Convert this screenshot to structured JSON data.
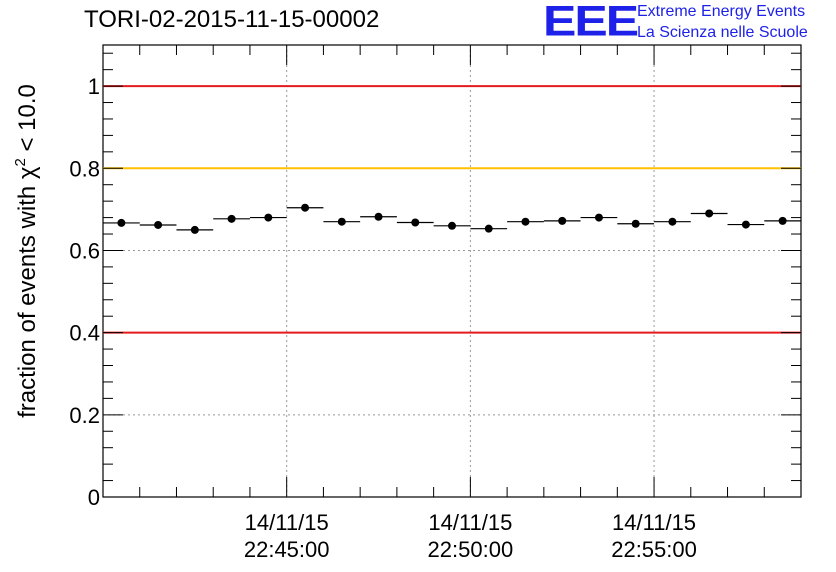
{
  "header": {
    "run_title": "TORI-02-2015-11-15-00002",
    "logo_mark": "EEE",
    "logo_line1": "Extreme Energy Events",
    "logo_line2": "La Scienza nelle Scuole"
  },
  "colors": {
    "red": "#e41a1c",
    "yellow": "#ffc000",
    "logo_blue": "#1e22e8"
  },
  "chart_data": {
    "type": "scatter",
    "title": "TORI-02-2015-11-15-00002",
    "ylabel_prefix": "fraction of events with ",
    "ylabel_symbol": "χ",
    "ylabel_superscript": "2",
    "ylabel_suffix": " < 10.0",
    "ylim": [
      0,
      1.1
    ],
    "y_ticks": [
      0,
      0.2,
      0.4,
      0.6,
      0.8,
      1
    ],
    "y_tick_labels": [
      "0",
      "0.2",
      "0.4",
      "0.6",
      "0.8",
      "1"
    ],
    "xlim_minutes": [
      0,
      19
    ],
    "x_ticks": [
      {
        "minute": 5,
        "line1": "14/11/15",
        "line2": "22:45:00"
      },
      {
        "minute": 10,
        "line1": "14/11/15",
        "line2": "22:50:00"
      },
      {
        "minute": 15,
        "line1": "14/11/15",
        "line2": "22:55:00"
      }
    ],
    "bin_width_minutes": 1,
    "values": [
      0.667,
      0.662,
      0.65,
      0.677,
      0.68,
      0.704,
      0.67,
      0.682,
      0.668,
      0.66,
      0.653,
      0.67,
      0.672,
      0.68,
      0.665,
      0.67,
      0.69,
      0.663,
      0.672
    ],
    "reference_lines": [
      {
        "y": 1.0,
        "color": "red"
      },
      {
        "y": 0.8,
        "color": "yellow"
      },
      {
        "y": 0.4,
        "color": "red"
      }
    ],
    "grid": true
  }
}
